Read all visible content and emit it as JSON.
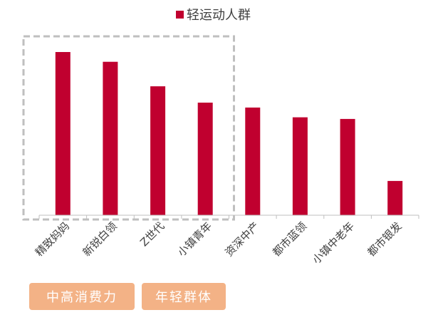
{
  "chart_data": {
    "type": "bar",
    "legend": {
      "label": "轻运动人群",
      "color": "#C0002F",
      "position": "top-center"
    },
    "categories": [
      "精致妈妈",
      "新锐白领",
      "Z世代",
      "小镇青年",
      "资深中产",
      "都市蓝领",
      "小镇中老年",
      "都市银发"
    ],
    "series": [
      {
        "name": "轻运动人群",
        "values": [
          100,
          94,
          79,
          69,
          66,
          60,
          59,
          21
        ]
      }
    ],
    "bar_color": "#C0002F",
    "value_scale": "relative (no value axis printed)",
    "grid": false,
    "highlight": {
      "first_categories": 4,
      "style": "dashed-box",
      "color": "#BFBFBF"
    }
  },
  "tags": [
    {
      "label": "中高消费力",
      "color": "#F3B286"
    },
    {
      "label": "年轻群体",
      "color": "#F3B286"
    }
  ]
}
